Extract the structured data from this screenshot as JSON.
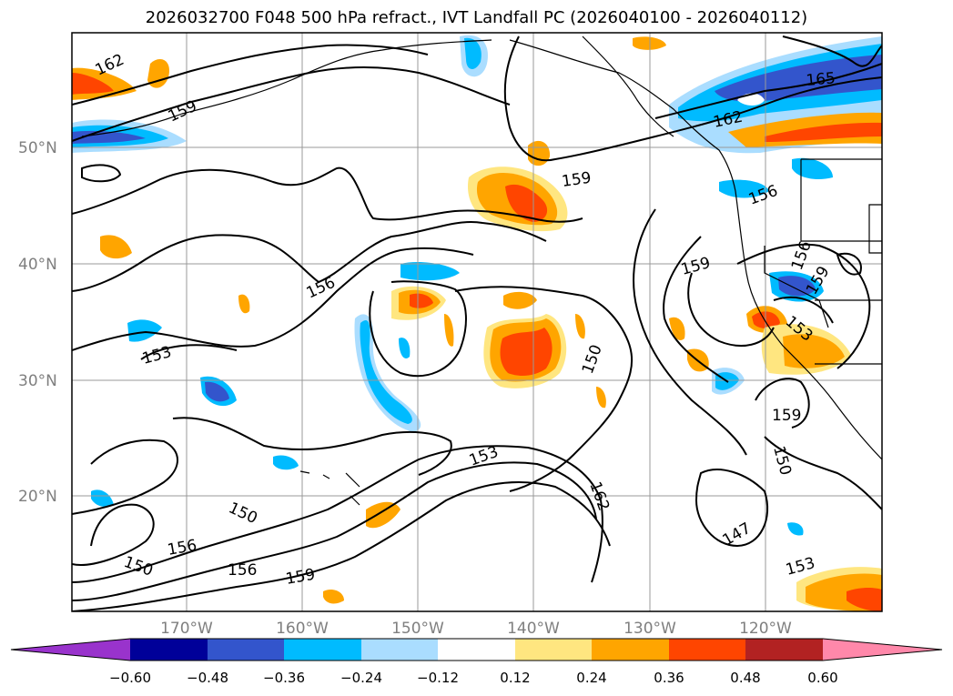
{
  "title": "2026032700 F048 500 hPa refract., IVT Landfall PC (2026040100 - 2026040112)",
  "map": {
    "lat_labels": [
      "50°N",
      "40°N",
      "30°N",
      "20°N"
    ],
    "lon_labels": [
      "170°W",
      "160°W",
      "150°W",
      "140°W",
      "130°W",
      "120°W"
    ],
    "contour_labels": [
      "162",
      "159",
      "165",
      "162",
      "159",
      "156",
      "156",
      "159",
      "156",
      "153",
      "153",
      "150",
      "159",
      "153",
      "150",
      "150",
      "162",
      "156",
      "150",
      "156",
      "159",
      "147",
      "153",
      "159"
    ]
  },
  "colorbar": {
    "colors": [
      "#9933cc",
      "#000099",
      "#3355cc",
      "#00bbff",
      "#aaddff",
      "#ffffff",
      "#ffe680",
      "#ffa500",
      "#ff4500",
      "#b22222",
      "#ff88aa"
    ],
    "tick_labels": [
      "−0.60",
      "−0.48",
      "−0.36",
      "−0.24",
      "−0.12",
      "0.12",
      "0.24",
      "0.36",
      "0.48",
      "0.60"
    ]
  }
}
